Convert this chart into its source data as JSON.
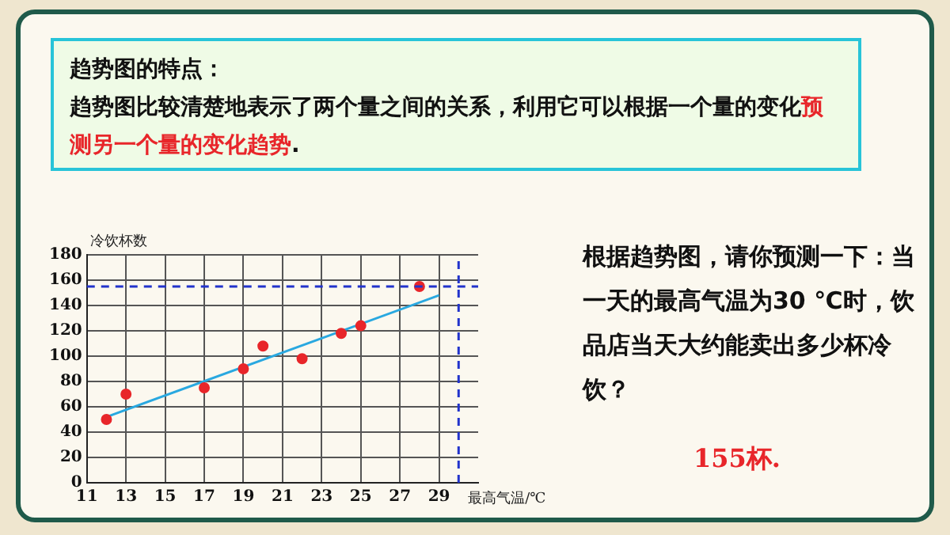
{
  "chart_data": {
    "type": "scatter",
    "xlabel": "最高气温/℃",
    "ylabel": "冷饮杯数",
    "annotations": [
      "趋势图的特点：",
      "趋势图比较清楚地表示了两个量之间的关系，利用它可以根据一个量的变化",
      "预测另一个量的变化趋势",
      ".",
      "根据趋势图，请你预测一下：当一天的最高气温为30 ℃时，饮品店当天大约能卖出多少杯冷饮？",
      "155杯."
    ],
    "series": [
      {
        "color": "#e8262a",
        "x": [
          12,
          13,
          17,
          19,
          20,
          22,
          24,
          25,
          28
        ],
        "values": [
          50,
          70,
          75,
          90,
          108,
          98,
          118,
          124,
          155
        ]
      },
      {
        "type": "line",
        "color": "#29a8e0",
        "x": [
          12,
          29
        ],
        "values": [
          52,
          148
        ],
        "marker": "none"
      }
    ],
    "xlim": [
      11,
      31
    ],
    "xticks": [
      11,
      13,
      15,
      17,
      19,
      21,
      23,
      25,
      27,
      29
    ],
    "ylim": [
      0,
      180
    ],
    "yticks": [
      0,
      20,
      40,
      60,
      80,
      100,
      120,
      140,
      160,
      180
    ],
    "grid": true,
    "marker": "circle",
    "ref_lines": [
      {
        "axis": "y",
        "value": 155,
        "color": "#2233cc",
        "line_style": "dashed"
      },
      {
        "axis": "x",
        "value": 30,
        "color": "#2233cc",
        "line_style": "dashed"
      }
    ]
  }
}
